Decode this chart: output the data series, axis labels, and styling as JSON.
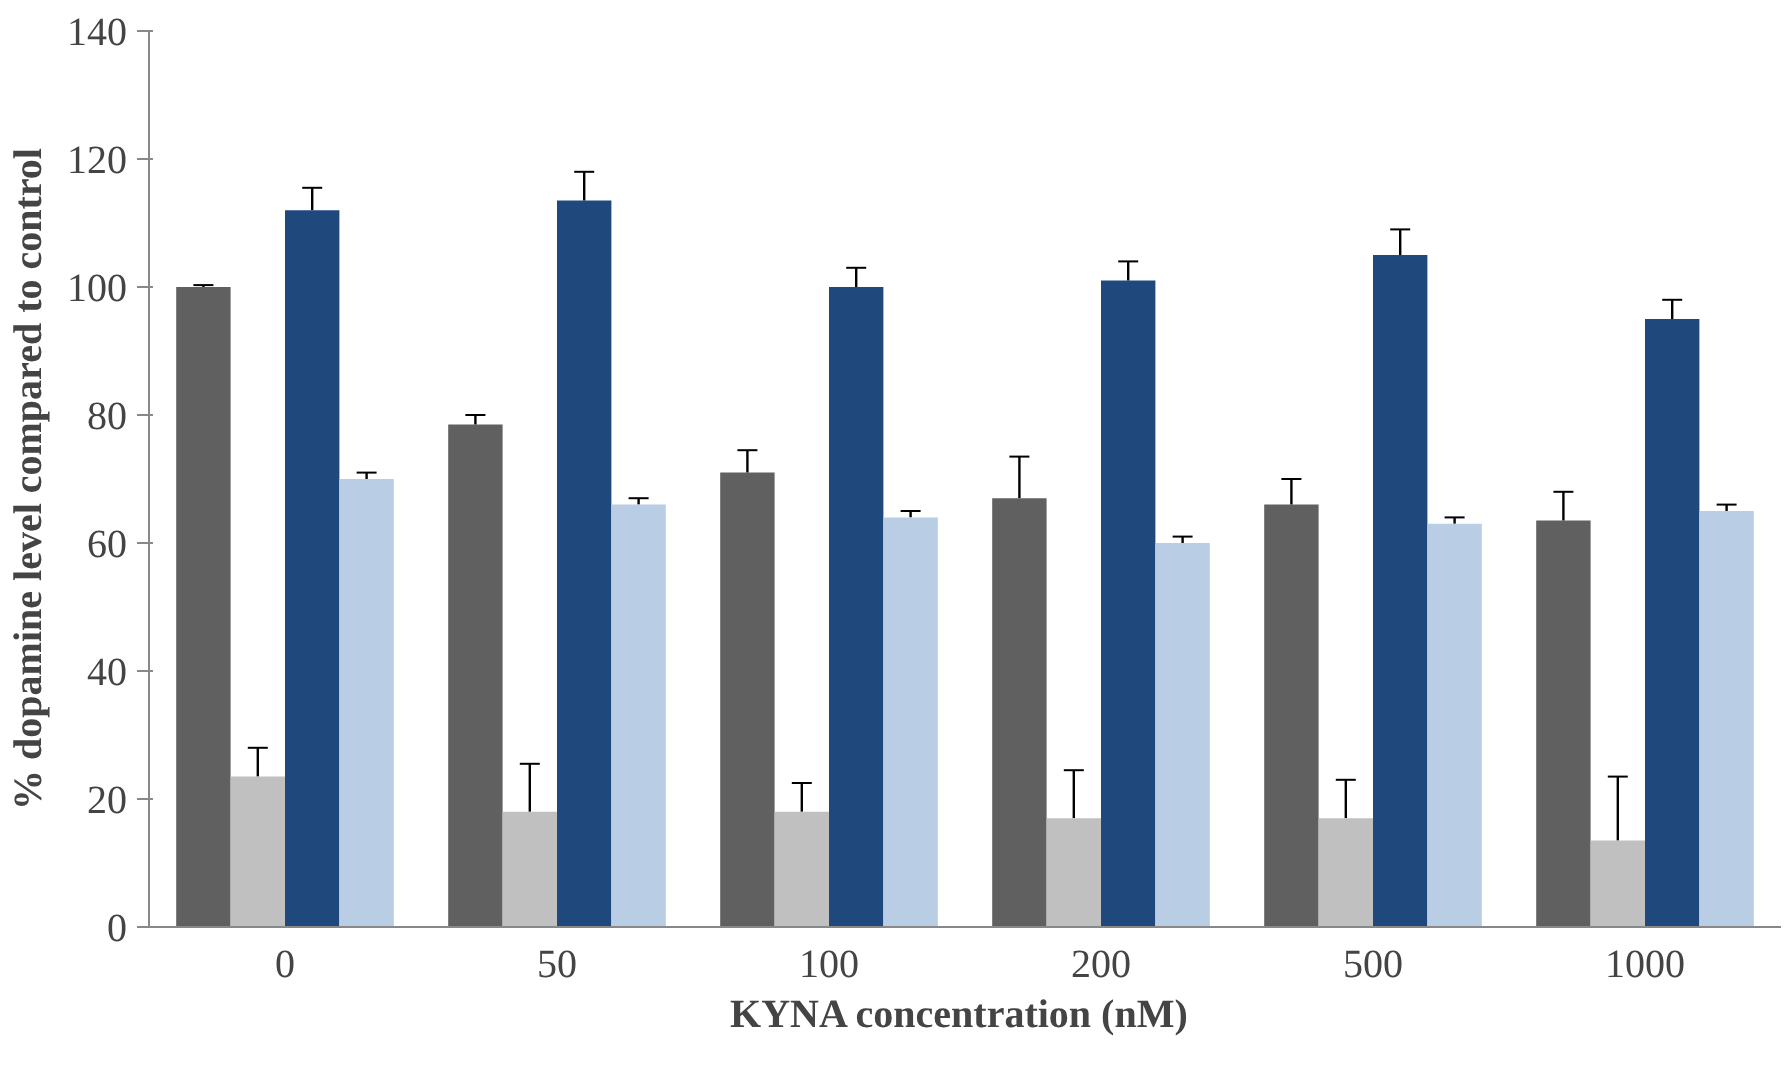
{
  "chart_data": {
    "type": "bar",
    "xlabel": "KYNA concentration  (nM)",
    "ylabel": "% dopamine level compared to control",
    "categories": [
      "0",
      "50",
      "100",
      "200",
      "500",
      "1000"
    ],
    "ylim": [
      0,
      140
    ],
    "yticks": [
      0,
      20,
      40,
      60,
      80,
      100,
      120,
      140
    ],
    "grid": false,
    "series": [
      {
        "color": "#606060",
        "values": [
          100,
          78.5,
          71,
          67,
          66,
          63.5
        ],
        "errors": [
          [
            100,
            100.3
          ],
          [
            78.5,
            80
          ],
          [
            71,
            74.5
          ],
          [
            67,
            73.5
          ],
          [
            66,
            70
          ],
          [
            63.5,
            68
          ]
        ]
      },
      {
        "color": "#c0c0c0",
        "values": [
          23.5,
          18,
          18,
          17,
          17,
          13.5
        ],
        "errors": [
          [
            23.5,
            28
          ],
          [
            18,
            25.5
          ],
          [
            18,
            22.5
          ],
          [
            17,
            24.5
          ],
          [
            17,
            23
          ],
          [
            13.5,
            23.5
          ]
        ]
      },
      {
        "color": "#1f497d",
        "values": [
          112,
          113.5,
          100,
          101,
          105,
          95
        ],
        "errors": [
          [
            112,
            115.5
          ],
          [
            113.5,
            118
          ],
          [
            100,
            103
          ],
          [
            101,
            104
          ],
          [
            105,
            109
          ],
          [
            95,
            98
          ]
        ]
      },
      {
        "color": "#b9cde5",
        "values": [
          70,
          66,
          64,
          60,
          63,
          65
        ],
        "errors": [
          [
            70,
            71
          ],
          [
            66,
            67
          ],
          [
            64,
            65
          ],
          [
            60,
            61
          ],
          [
            63,
            64
          ],
          [
            65,
            66
          ]
        ]
      }
    ]
  }
}
